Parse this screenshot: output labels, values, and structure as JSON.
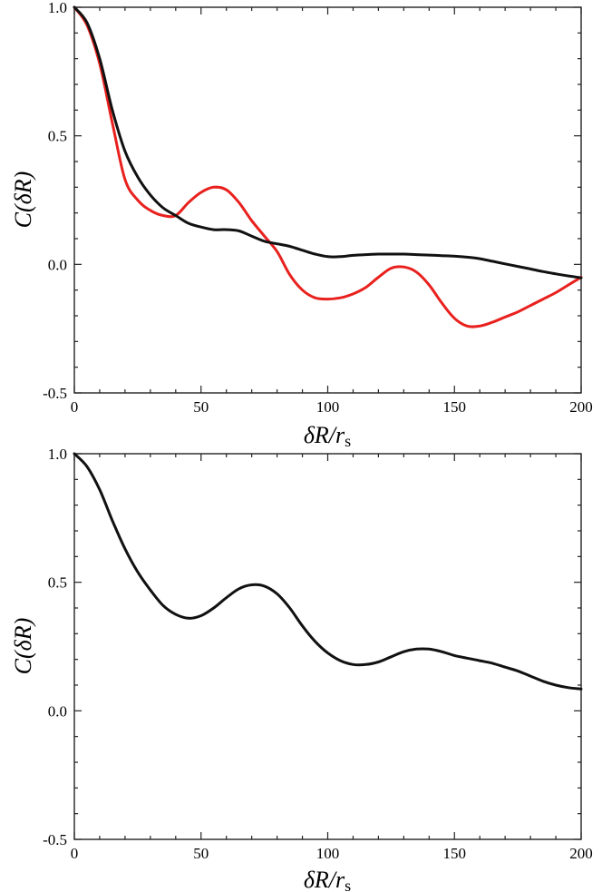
{
  "chart_data": [
    {
      "type": "line",
      "xlabel": "δR/r",
      "xlabel_sub": "s",
      "ylabel": "C(δR)",
      "xlim": [
        0,
        200
      ],
      "ylim": [
        -0.5,
        1.0
      ],
      "xticks": [
        0,
        50,
        100,
        150,
        200
      ],
      "xtick_labels": [
        "0",
        "50",
        "100",
        "150",
        "200"
      ],
      "yticks": [
        -0.5,
        0.0,
        0.5,
        1.0
      ],
      "ytick_labels": [
        "-0.5",
        "0.0",
        "0.5",
        "1.0"
      ],
      "grid": false,
      "series": [
        {
          "color": "#e8211e",
          "x": [
            0,
            5,
            10,
            15,
            20,
            25,
            30,
            35,
            40,
            45,
            50,
            55,
            60,
            65,
            70,
            75,
            80,
            85,
            90,
            95,
            100,
            105,
            110,
            115,
            120,
            125,
            130,
            135,
            140,
            145,
            150,
            155,
            160,
            165,
            170,
            175,
            180,
            185,
            190,
            195,
            200
          ],
          "y": [
            1.0,
            0.93,
            0.78,
            0.55,
            0.33,
            0.25,
            0.21,
            0.19,
            0.19,
            0.24,
            0.28,
            0.3,
            0.29,
            0.24,
            0.17,
            0.11,
            0.05,
            -0.04,
            -0.1,
            -0.13,
            -0.135,
            -0.13,
            -0.115,
            -0.09,
            -0.05,
            -0.015,
            -0.01,
            -0.03,
            -0.08,
            -0.15,
            -0.21,
            -0.24,
            -0.24,
            -0.225,
            -0.205,
            -0.185,
            -0.16,
            -0.135,
            -0.11,
            -0.08,
            -0.05
          ]
        },
        {
          "color": "#111111",
          "x": [
            0,
            5,
            10,
            15,
            20,
            25,
            30,
            35,
            40,
            45,
            50,
            55,
            60,
            65,
            70,
            75,
            80,
            85,
            90,
            95,
            100,
            105,
            110,
            115,
            120,
            125,
            130,
            135,
            140,
            145,
            150,
            155,
            160,
            165,
            170,
            175,
            180,
            185,
            190,
            195,
            200
          ],
          "y": [
            1.0,
            0.94,
            0.8,
            0.6,
            0.44,
            0.34,
            0.27,
            0.22,
            0.19,
            0.16,
            0.145,
            0.135,
            0.135,
            0.13,
            0.11,
            0.09,
            0.08,
            0.07,
            0.055,
            0.04,
            0.03,
            0.03,
            0.035,
            0.038,
            0.04,
            0.04,
            0.04,
            0.038,
            0.036,
            0.034,
            0.032,
            0.028,
            0.022,
            0.012,
            0.002,
            -0.008,
            -0.018,
            -0.028,
            -0.037,
            -0.045,
            -0.052
          ]
        }
      ]
    },
    {
      "type": "line",
      "xlabel": "δR/r",
      "xlabel_sub": "s",
      "ylabel": "C(δR)",
      "xlim": [
        0,
        200
      ],
      "ylim": [
        -0.5,
        1.0
      ],
      "xticks": [
        0,
        50,
        100,
        150,
        200
      ],
      "xtick_labels": [
        "0",
        "50",
        "100",
        "150",
        "200"
      ],
      "yticks": [
        -0.5,
        0.0,
        0.5,
        1.0
      ],
      "ytick_labels": [
        "-0.5",
        "0.0",
        "0.5",
        "1.0"
      ],
      "grid": false,
      "series": [
        {
          "color": "#111111",
          "x": [
            0,
            5,
            10,
            15,
            20,
            25,
            30,
            35,
            40,
            45,
            50,
            55,
            60,
            65,
            70,
            75,
            80,
            85,
            90,
            95,
            100,
            105,
            110,
            115,
            120,
            125,
            130,
            135,
            140,
            145,
            150,
            155,
            160,
            165,
            170,
            175,
            180,
            185,
            190,
            195,
            200
          ],
          "y": [
            1.0,
            0.95,
            0.86,
            0.74,
            0.63,
            0.54,
            0.47,
            0.41,
            0.375,
            0.36,
            0.37,
            0.4,
            0.44,
            0.475,
            0.49,
            0.485,
            0.455,
            0.4,
            0.33,
            0.27,
            0.225,
            0.195,
            0.18,
            0.18,
            0.19,
            0.21,
            0.23,
            0.24,
            0.24,
            0.23,
            0.215,
            0.205,
            0.195,
            0.185,
            0.17,
            0.155,
            0.135,
            0.115,
            0.1,
            0.09,
            0.085
          ]
        }
      ]
    }
  ]
}
